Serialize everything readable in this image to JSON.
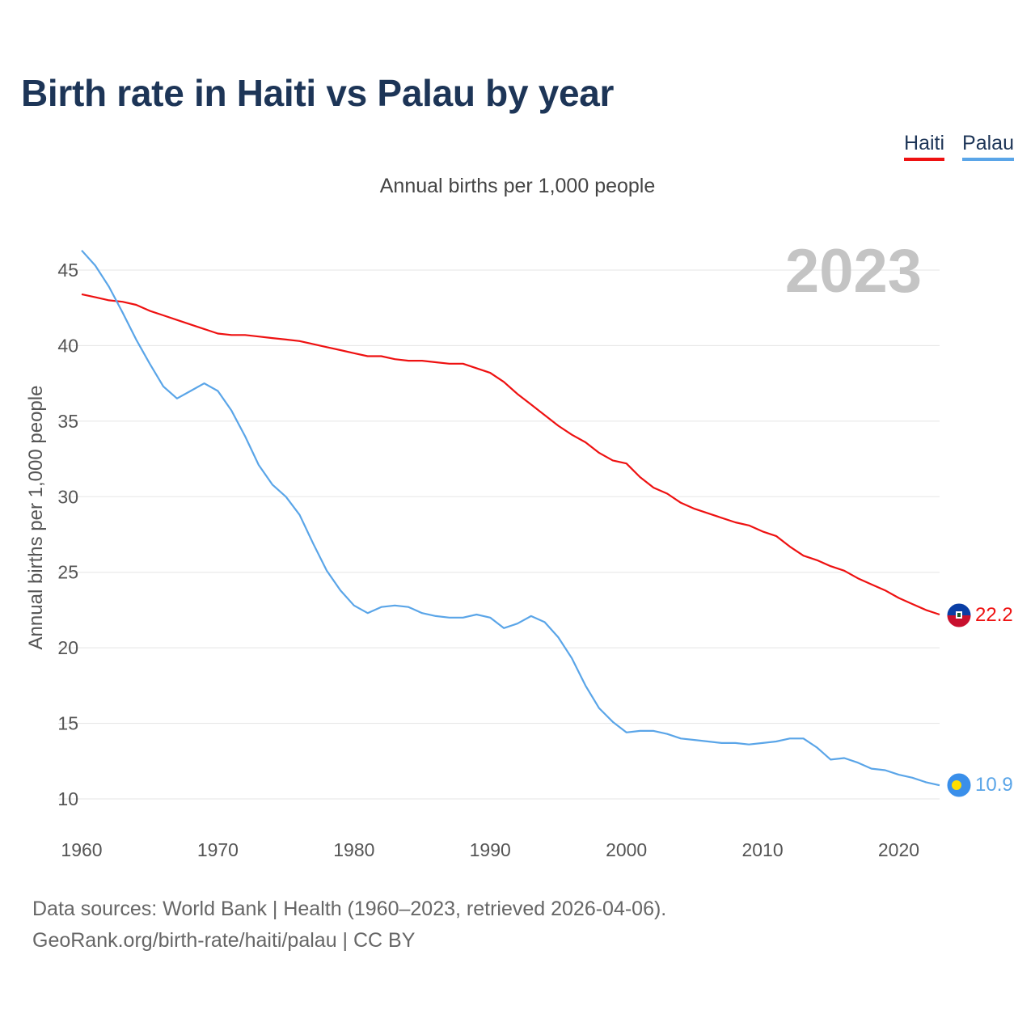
{
  "title": "Birth rate in Haiti vs Palau by year",
  "subtitle": "Annual births per 1,000 people",
  "legend": [
    {
      "label": "Haiti",
      "color": "#ee1111"
    },
    {
      "label": "Palau",
      "color": "#5aa5e8"
    }
  ],
  "source": {
    "line1": "Data sources: World Bank | Health (1960–2023, retrieved 2026-04-06).",
    "line2": "GeoRank.org/birth-rate/haiti/palau | CC BY"
  },
  "chart_data": {
    "type": "line",
    "title": "Birth rate in Haiti vs Palau by year",
    "xlabel": "",
    "ylabel": "Annual births per 1,000 people",
    "year_label": "2023",
    "xlim": [
      1960,
      2023
    ],
    "ylim": [
      10,
      47
    ],
    "xticks": [
      1960,
      1970,
      1980,
      1990,
      2000,
      2010,
      2020
    ],
    "yticks": [
      10,
      15,
      20,
      25,
      30,
      35,
      40,
      45
    ],
    "grid": true,
    "legend_position": "top-right",
    "x": [
      1960,
      1961,
      1962,
      1963,
      1964,
      1965,
      1966,
      1967,
      1968,
      1969,
      1970,
      1971,
      1972,
      1973,
      1974,
      1975,
      1976,
      1977,
      1978,
      1979,
      1980,
      1981,
      1982,
      1983,
      1984,
      1985,
      1986,
      1987,
      1988,
      1989,
      1990,
      1991,
      1992,
      1993,
      1994,
      1995,
      1996,
      1997,
      1998,
      1999,
      2000,
      2001,
      2002,
      2003,
      2004,
      2005,
      2006,
      2007,
      2008,
      2009,
      2010,
      2011,
      2012,
      2013,
      2014,
      2015,
      2016,
      2017,
      2018,
      2019,
      2020,
      2021,
      2022,
      2023
    ],
    "series": [
      {
        "name": "Haiti",
        "color": "#ee1111",
        "end_label": "22.2",
        "values": [
          43.4,
          43.2,
          43.0,
          42.9,
          42.7,
          42.3,
          42.0,
          41.7,
          41.4,
          41.1,
          40.8,
          40.7,
          40.7,
          40.6,
          40.5,
          40.4,
          40.3,
          40.1,
          39.9,
          39.7,
          39.5,
          39.3,
          39.3,
          39.1,
          39.0,
          39.0,
          38.9,
          38.8,
          38.8,
          38.5,
          38.2,
          37.6,
          36.8,
          36.1,
          35.4,
          34.7,
          34.1,
          33.6,
          32.9,
          32.4,
          32.2,
          31.3,
          30.6,
          30.2,
          29.6,
          29.2,
          28.9,
          28.6,
          28.3,
          28.1,
          27.7,
          27.4,
          26.7,
          26.1,
          25.8,
          25.4,
          25.1,
          24.6,
          24.2,
          23.8,
          23.3,
          22.9,
          22.5,
          22.2
        ]
      },
      {
        "name": "Palau",
        "color": "#5aa5e8",
        "end_label": "10.9",
        "values": [
          46.3,
          45.3,
          43.9,
          42.2,
          40.4,
          38.8,
          37.3,
          36.5,
          37.0,
          37.5,
          37.0,
          35.7,
          34.0,
          32.1,
          30.8,
          30.0,
          28.8,
          26.9,
          25.1,
          23.8,
          22.8,
          22.3,
          22.7,
          22.8,
          22.7,
          22.3,
          22.1,
          22.0,
          22.0,
          22.2,
          22.0,
          21.3,
          21.6,
          22.1,
          21.7,
          20.7,
          19.3,
          17.5,
          16.0,
          15.1,
          14.4,
          14.5,
          14.5,
          14.3,
          14.0,
          13.9,
          13.8,
          13.7,
          13.7,
          13.6,
          13.7,
          13.8,
          14.0,
          14.0,
          13.4,
          12.6,
          12.7,
          12.4,
          12.0,
          11.9,
          11.6,
          11.4,
          11.1,
          10.9
        ]
      }
    ]
  }
}
